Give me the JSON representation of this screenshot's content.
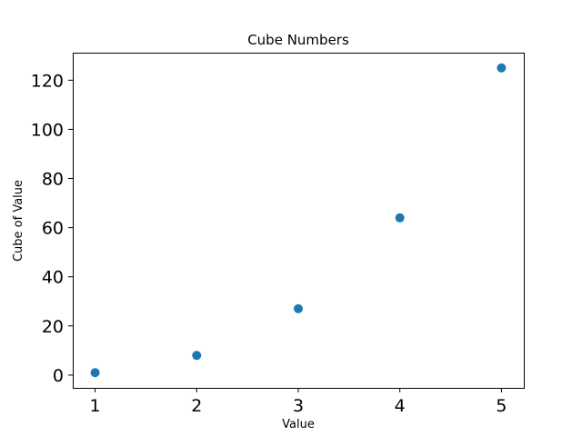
{
  "chart_data": {
    "type": "scatter",
    "title": "Cube Numbers",
    "xlabel": "Value",
    "ylabel": "Cube of Value",
    "x": [
      1,
      2,
      3,
      4,
      5
    ],
    "y": [
      1,
      8,
      27,
      64,
      125
    ],
    "xlim": [
      0.78,
      5.22
    ],
    "ylim": [
      -5.2,
      131.2
    ],
    "xticks": [
      1,
      2,
      3,
      4,
      5
    ],
    "yticks": [
      0,
      20,
      40,
      60,
      80,
      100,
      120
    ],
    "grid": false,
    "marker_color": "#1f77b4"
  }
}
